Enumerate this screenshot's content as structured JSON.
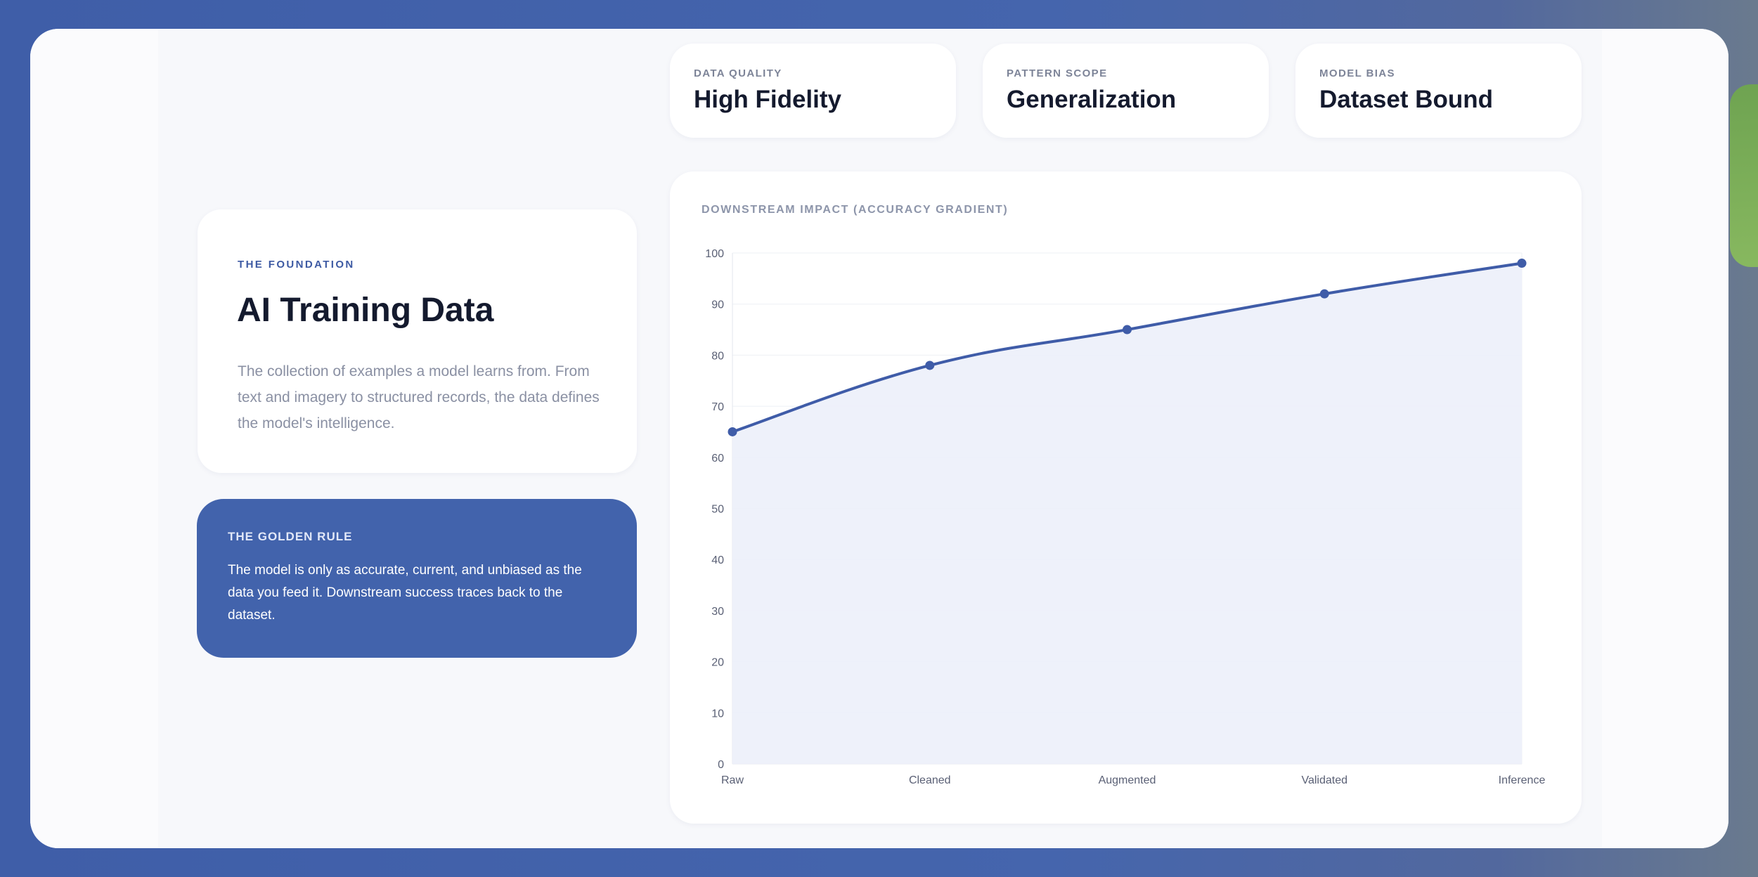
{
  "stats": [
    {
      "label": "DATA QUALITY",
      "value": "High Fidelity"
    },
    {
      "label": "PATTERN SCOPE",
      "value": "Generalization"
    },
    {
      "label": "MODEL BIAS",
      "value": "Dataset Bound"
    }
  ],
  "foundation": {
    "eyebrow": "THE FOUNDATION",
    "title": "AI Training Data",
    "description": "The collection of examples a model learns from. From text and imagery to structured records, the data defines the model's intelligence."
  },
  "golden_rule": {
    "title": "THE GOLDEN RULE",
    "text": "The model is only as accurate, current, and unbiased as the data you feed it. Downstream success traces back to the dataset."
  },
  "colors": {
    "accent": "#4263ac",
    "line": "#3f5ca8",
    "area": "#eceff9"
  },
  "chart_data": {
    "type": "area",
    "title": "DOWNSTREAM IMPACT (ACCURACY GRADIENT)",
    "categories": [
      "Raw",
      "Cleaned",
      "Augmented",
      "Validated",
      "Inference"
    ],
    "values": [
      65,
      78,
      85,
      92,
      98
    ],
    "ylim": [
      0,
      100
    ],
    "yticks": [
      0,
      10,
      20,
      30,
      40,
      50,
      60,
      70,
      80,
      90,
      100
    ],
    "grid": true,
    "legend": "none"
  }
}
